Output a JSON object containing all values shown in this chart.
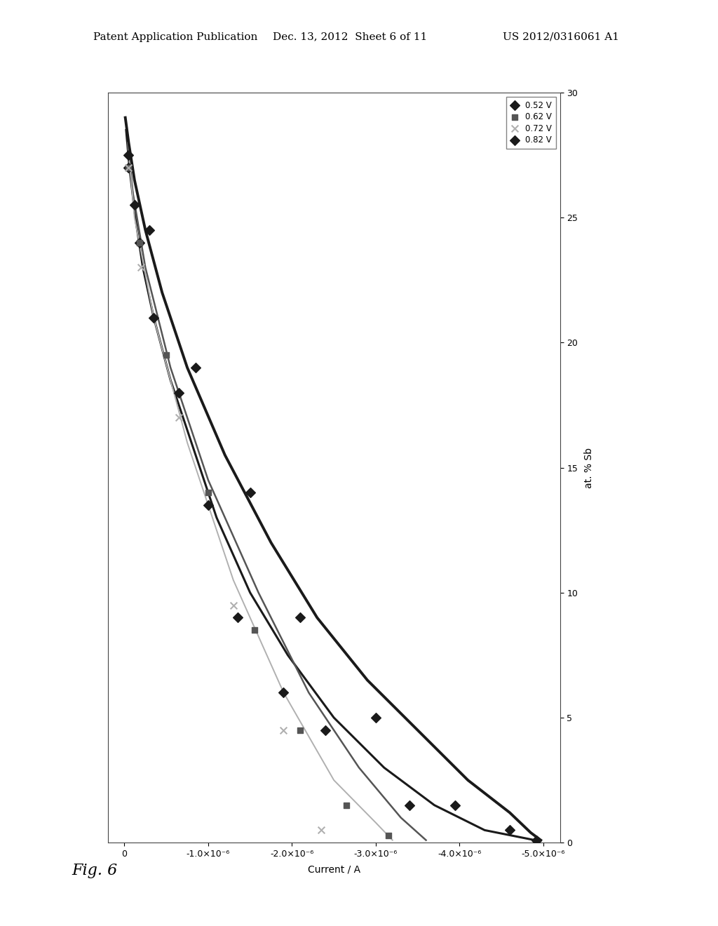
{
  "header_line1": "Patent Application Publication",
  "header_line2": "Dec. 13, 2012  Sheet 6 of 11",
  "header_line3": "US 2012/0316061 A1",
  "fig_label": "Fig. 6",
  "xlabel_rotated": "Current / A",
  "ylabel_rotated": "at. % Sb",
  "xlim": [
    0,
    30
  ],
  "ylim": [
    -5e-06,
    3e-07
  ],
  "xticks": [
    0,
    5,
    10,
    15,
    20,
    25,
    30
  ],
  "yticks": [
    0,
    -1e-06,
    -2e-06,
    -3e-06,
    -4e-06,
    -5e-06
  ],
  "ytick_labels": [
    "0",
    "-1.0×10⁻⁶",
    "-2.0×10⁻⁶",
    "-3.0×10⁻⁶",
    "-4.0×10⁻⁶",
    "-5.0×10⁻⁶"
  ],
  "series": [
    {
      "label": "0.52 V",
      "color": "#1a1a1a",
      "marker": "D",
      "markersize": 7,
      "scatter_x": [
        27,
        25.5,
        24,
        21,
        18,
        13.5,
        9,
        6,
        4.5,
        1.5
      ],
      "scatter_y": [
        -5e-08,
        -1.2e-07,
        -1.8e-07,
        -3.5e-07,
        -6.5e-07,
        -1e-06,
        -1.35e-06,
        -1.9e-06,
        -2.4e-06,
        -3.4e-06
      ],
      "curve_x": [
        28.5,
        27,
        25,
        23,
        21,
        18.5,
        16,
        13,
        10,
        7.5,
        5,
        3,
        1.5,
        0.5,
        0.1
      ],
      "curve_y": [
        -2e-08,
        -6e-08,
        -1.3e-07,
        -2.2e-07,
        -3.5e-07,
        -5.5e-07,
        -8e-07,
        -1.1e-06,
        -1.5e-06,
        -1.95e-06,
        -2.5e-06,
        -3.1e-06,
        -3.7e-06,
        -4.3e-06,
        -4.9e-06
      ],
      "linewidth": 2.2,
      "linestyle": "-"
    },
    {
      "label": "0.62 V",
      "color": "#555555",
      "marker": "s",
      "markersize": 6,
      "scatter_x": [
        27,
        24,
        19.5,
        14,
        8.5,
        4.5,
        1.5,
        0.3
      ],
      "scatter_y": [
        -5e-08,
        -1.8e-07,
        -5e-07,
        -1e-06,
        -1.55e-06,
        -2.1e-06,
        -2.65e-06,
        -3.15e-06
      ],
      "curve_x": [
        28,
        26,
        23,
        19,
        14.5,
        10,
        6,
        3,
        1,
        0.1
      ],
      "curve_y": [
        -4e-08,
        -1e-07,
        -2.5e-07,
        -5.5e-07,
        -1e-06,
        -1.6e-06,
        -2.2e-06,
        -2.8e-06,
        -3.3e-06,
        -3.6e-06
      ],
      "linewidth": 1.8,
      "linestyle": "-"
    },
    {
      "label": "0.72 V",
      "color": "#b0b0b0",
      "marker": "x",
      "markersize": 7,
      "scatter_x": [
        27,
        23,
        17,
        9.5,
        4.5,
        0.5
      ],
      "scatter_y": [
        -5e-08,
        -2e-07,
        -6.5e-07,
        -1.3e-06,
        -1.9e-06,
        -2.35e-06
      ],
      "curve_x": [
        28,
        25,
        21,
        16,
        10.5,
        6,
        2.5,
        0.8,
        0.1
      ],
      "curve_y": [
        -4e-08,
        -1.2e-07,
        -3.5e-07,
        -7.5e-07,
        -1.3e-06,
        -1.9e-06,
        -2.5e-06,
        -3e-06,
        -3.2e-06
      ],
      "linewidth": 1.4,
      "linestyle": "-"
    },
    {
      "label": "0.82 V",
      "color": "#1a1a1a",
      "marker": "D",
      "markersize": 7,
      "scatter_x": [
        27.5,
        24.5,
        19,
        14,
        9,
        5,
        1.5,
        0.5,
        0.1
      ],
      "scatter_y": [
        -5e-08,
        -3e-07,
        -8.5e-07,
        -1.5e-06,
        -2.1e-06,
        -3e-06,
        -3.95e-06,
        -4.6e-06,
        -4.92e-06
      ],
      "curve_x": [
        29,
        28,
        26.5,
        24.5,
        22,
        19,
        15.5,
        12,
        9,
        6.5,
        4.5,
        2.5,
        1.2,
        0.4,
        0.1
      ],
      "curve_y": [
        -1e-08,
        -5e-08,
        -1.2e-07,
        -2.5e-07,
        -4.5e-07,
        -7.5e-07,
        -1.2e-06,
        -1.75e-06,
        -2.3e-06,
        -2.9e-06,
        -3.5e-06,
        -4.1e-06,
        -4.6e-06,
        -4.85e-06,
        -4.97e-06
      ],
      "linewidth": 2.8,
      "linestyle": "-"
    }
  ],
  "background_color": "#ffffff",
  "plot_bg_color": "#ffffff",
  "border_color": "#888888"
}
